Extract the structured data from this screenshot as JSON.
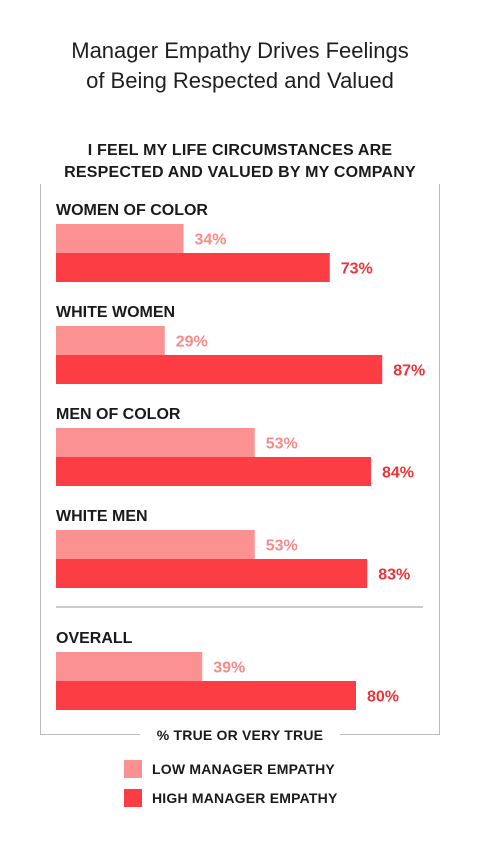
{
  "title_line1": "Manager Empathy Drives Feelings",
  "title_line2": "of Being Respected and Valued",
  "subtitle_line1": "I FEEL MY LIFE CIRCUMSTANCES ARE",
  "subtitle_line2": "RESPECTED AND VALUED BY MY COMPANY",
  "colors": {
    "low": "#fb9191",
    "high": "#fc3d43",
    "low_text": "#f88a8a",
    "high_text": "#ee3338"
  },
  "chart_data": {
    "type": "bar",
    "orientation": "horizontal",
    "title": "Manager Empathy Drives Feelings of Being Respected and Valued",
    "subtitle": "I FEEL MY LIFE CIRCUMSTANCES ARE RESPECTED AND VALUED BY MY COMPANY",
    "xlabel": "% TRUE OR VERY TRUE",
    "unit": "%",
    "xlim": [
      0,
      100
    ],
    "grid": false,
    "legend_position": "bottom",
    "categories": [
      "WOMEN OF COLOR",
      "WHITE WOMEN",
      "MEN OF COLOR",
      "WHITE MEN",
      "OVERALL"
    ],
    "series": [
      {
        "name": "LOW MANAGER EMPATHY",
        "values": [
          34,
          29,
          53,
          53,
          39
        ]
      },
      {
        "name": "HIGH MANAGER EMPATHY",
        "values": [
          73,
          87,
          84,
          83,
          80
        ]
      }
    ]
  }
}
